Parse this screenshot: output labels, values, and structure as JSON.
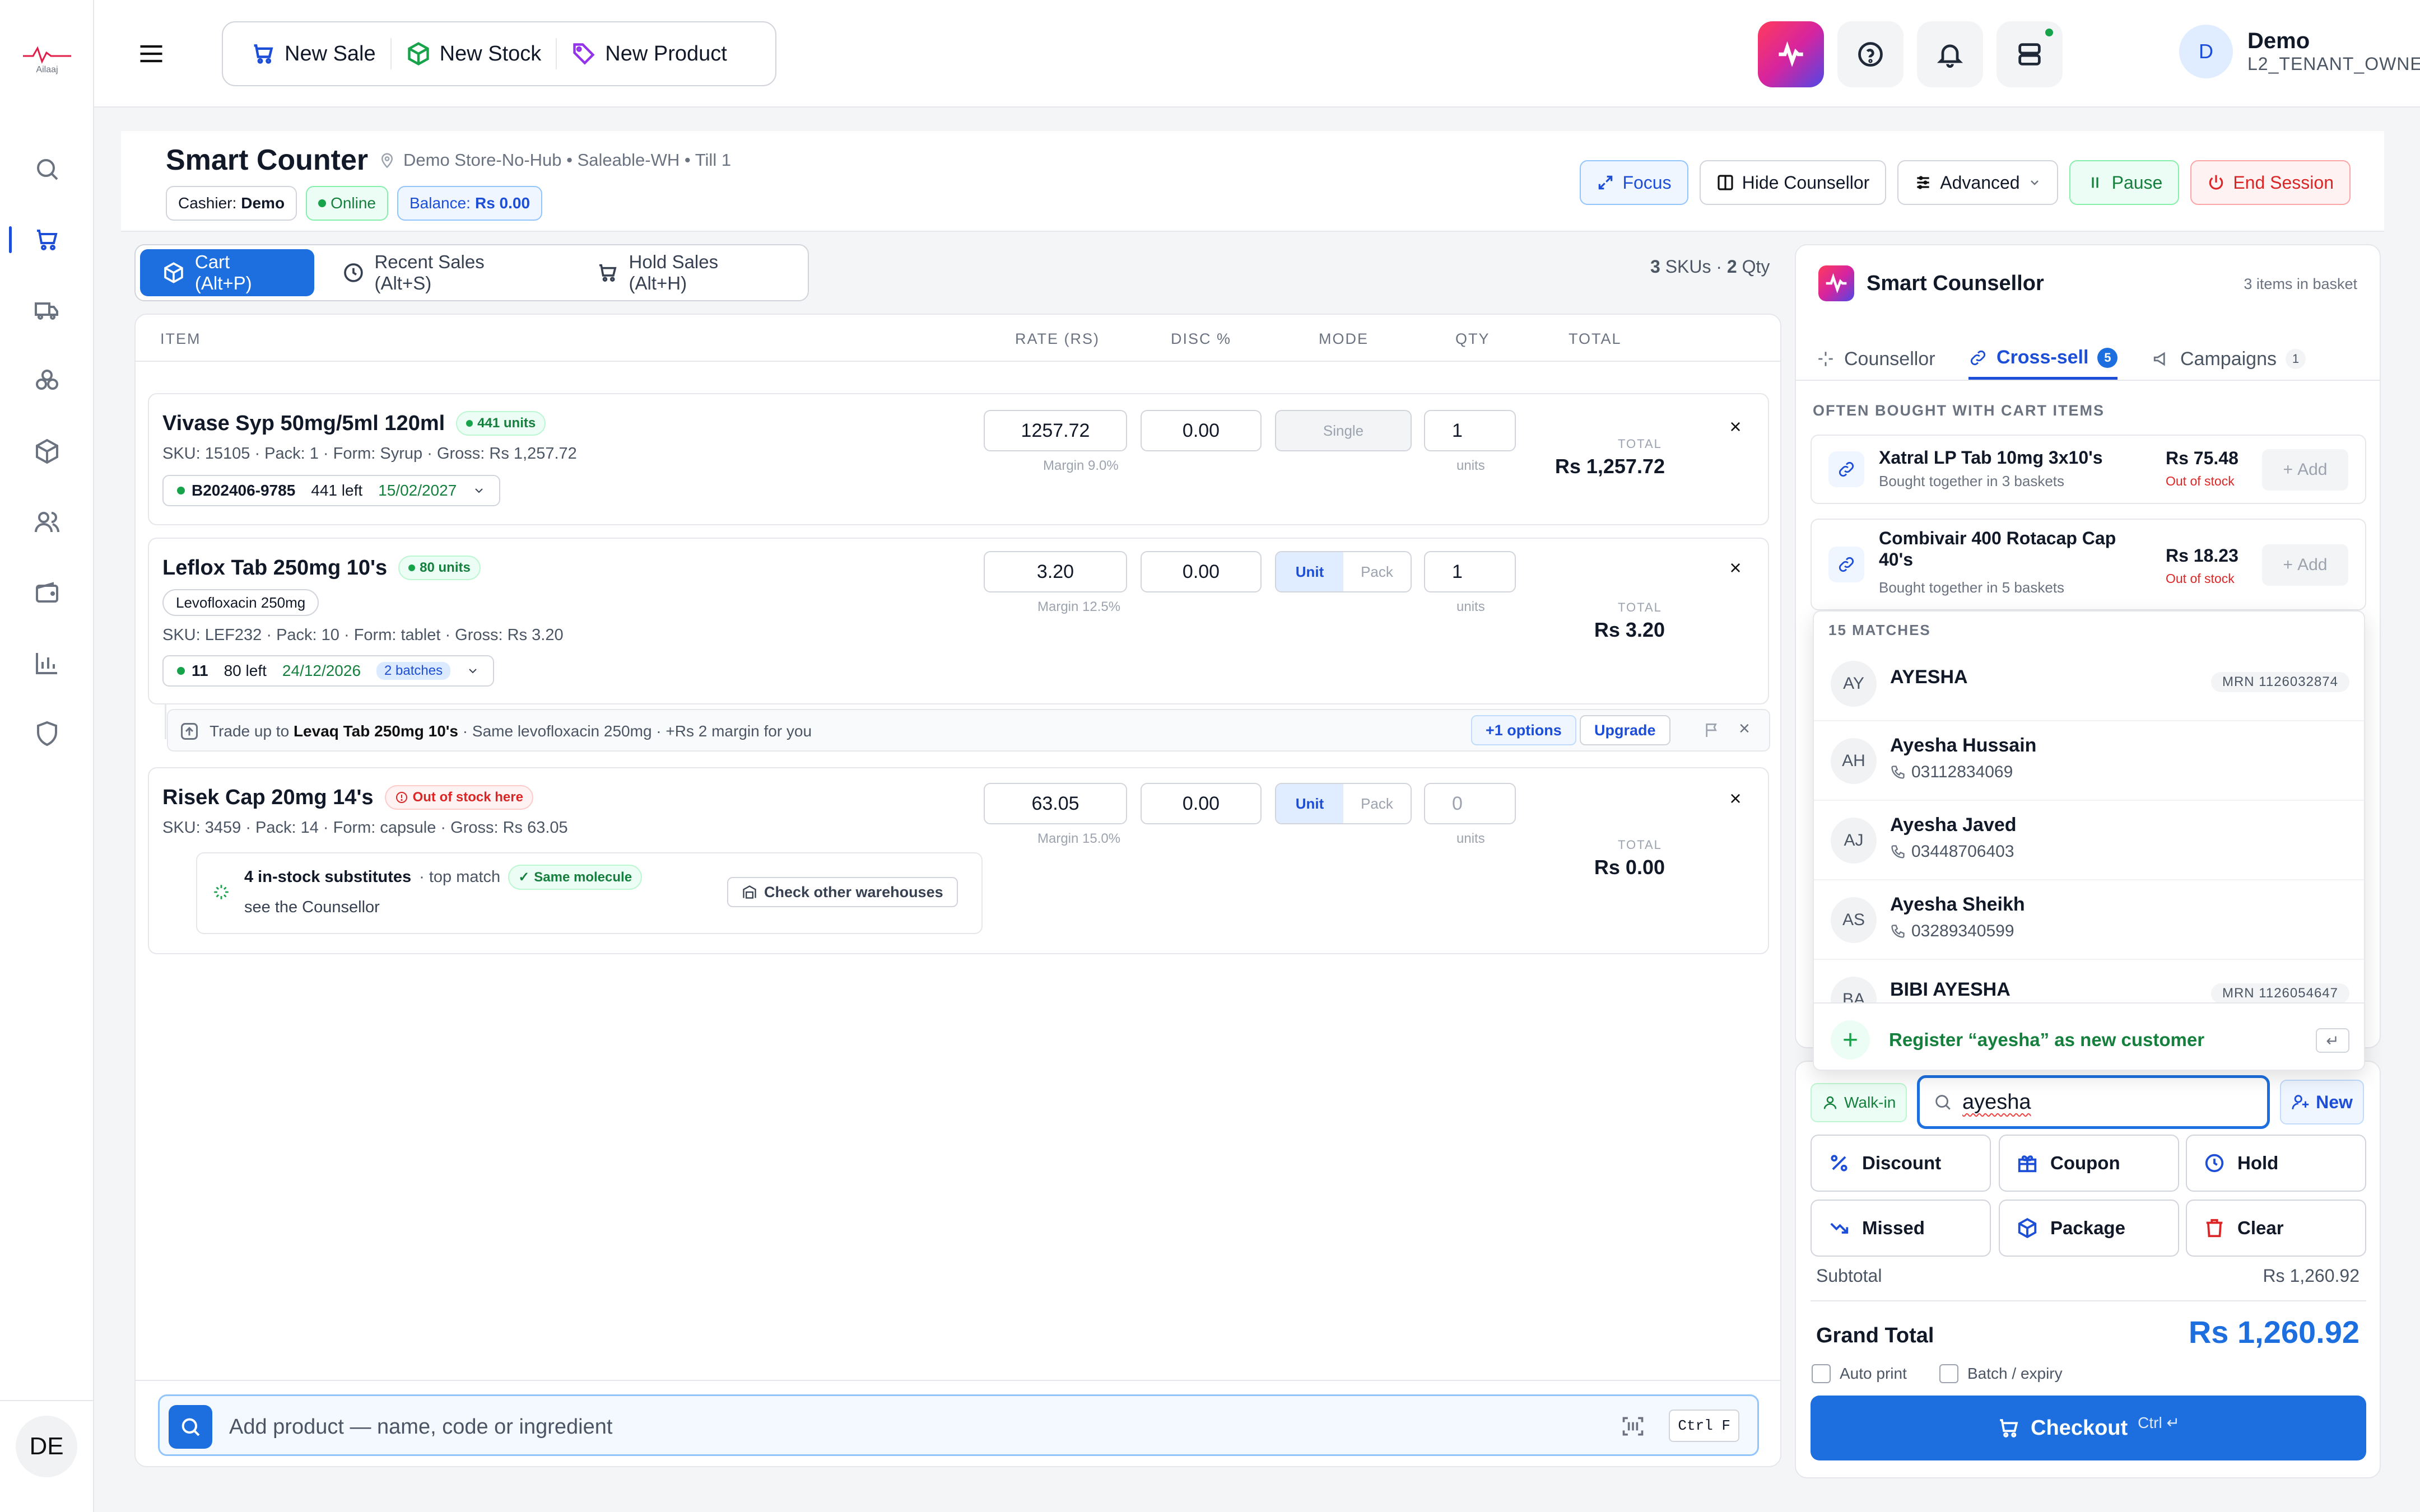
{
  "app": {
    "logo_text": "Ailaaj"
  },
  "topbar": {
    "new_sale": "New Sale",
    "new_stock": "New Stock",
    "new_product": "New Product",
    "user_name": "Demo",
    "user_role": "L2_TENANT_OWNER",
    "user_initial": "D"
  },
  "sidebar": {
    "bottom_avatar": "DE",
    "items": [
      "search-icon",
      "cart-icon",
      "truck-icon",
      "boxes-icon",
      "package-icon",
      "users-icon",
      "wallet-icon",
      "chart-icon",
      "shield-icon"
    ]
  },
  "header": {
    "title": "Smart Counter",
    "location": "Demo Store-No-Hub • Saleable-WH • Till 1",
    "cashier_label": "Cashier:",
    "cashier_value": "Demo",
    "online": "Online",
    "balance_label": "Balance:",
    "balance_value": "Rs 0.00",
    "focus": "Focus",
    "hide_counsellor": "Hide Counsellor",
    "advanced": "Advanced",
    "pause": "Pause",
    "end_session": "End Session"
  },
  "tabs": {
    "cart": "Cart (Alt+P)",
    "recent": "Recent Sales (Alt+S)",
    "hold": "Hold Sales (Alt+H)"
  },
  "summary": {
    "skus": "3",
    "skus_label": "SKUs ·",
    "qty": "2",
    "qty_label": "Qty"
  },
  "columns": {
    "item": "ITEM",
    "rate": "RATE (RS)",
    "disc": "DISC %",
    "mode": "MODE",
    "qty": "QTY",
    "total": "TOTAL"
  },
  "items": [
    {
      "name": "Vivase Syp 50mg/5ml 120ml",
      "stock_badge": "441 units",
      "meta": "SKU: 15105 · Pack: 1 · Form: Syrup · Gross: Rs 1,257.72",
      "batch": "B202406-9785",
      "left": "441 left",
      "expiry": "15/02/2027",
      "rate": "1257.72",
      "margin": "Margin 9.0%",
      "disc": "0.00",
      "mode_single": "Single",
      "qty": "1",
      "units": "units",
      "total_label": "TOTAL",
      "total": "Rs 1,257.72"
    },
    {
      "name": "Leflox Tab 250mg 10's",
      "stock_badge": "80 units",
      "generic": "Levofloxacin 250mg",
      "meta": "SKU: LEF232 · Pack: 10 · Form: tablet · Gross: Rs 3.20",
      "batch": "11",
      "left": "80 left",
      "expiry": "24/12/2026",
      "batches": "2 batches",
      "rate": "3.20",
      "margin": "Margin 12.5%",
      "disc": "0.00",
      "mode_unit": "Unit",
      "mode_pack": "Pack",
      "qty": "1",
      "units": "units",
      "total_label": "TOTAL",
      "total": "Rs 3.20",
      "upgrade_prefix": "Trade up to",
      "upgrade_product": "Levaq Tab 250mg 10's",
      "upgrade_suffix": "· Same levofloxacin 250mg · +Rs 2 margin for you",
      "options": "+1 options",
      "upgrade": "Upgrade"
    },
    {
      "name": "Risek Cap 20mg 14's",
      "stock_badge": "Out of stock here",
      "meta": "SKU: 3459 · Pack: 14 · Form: capsule · Gross: Rs 63.05",
      "rate": "63.05",
      "margin": "Margin 15.0%",
      "disc": "0.00",
      "mode_unit": "Unit",
      "mode_pack": "Pack",
      "qty_placeholder": "0",
      "units": "units",
      "total_label": "TOTAL",
      "total": "Rs 0.00",
      "subs_title": "4 in-stock substitutes",
      "subs_match": "· top match",
      "subs_badge": "Same molecule",
      "subs_hint": "see the Counsellor",
      "check_wh": "Check other warehouses"
    }
  ],
  "add_product": {
    "placeholder": "Add product — name, code or ingredient",
    "shortcut": "Ctrl F"
  },
  "counsellor": {
    "title": "Smart Counsellor",
    "basket_count": "3 items in basket",
    "tab_counsellor": "Counsellor",
    "tab_crosssell": "Cross-sell",
    "crosssell_count": "5",
    "tab_campaigns": "Campaigns",
    "campaigns_count": "1",
    "section": "OFTEN BOUGHT WITH CART ITEMS",
    "crosssell": [
      {
        "name": "Xatral LP Tab 10mg 3x10's",
        "sub": "Bought together in 3 baskets",
        "price": "Rs 75.48",
        "stock": "Out of stock",
        "add": "Add"
      },
      {
        "name": "Combivair 400 Rotacap Cap 40's",
        "sub": "Bought together in 5 baskets",
        "price": "Rs 18.23",
        "stock": "Out of stock",
        "add": "Add"
      }
    ]
  },
  "customer_search": {
    "matches": "15 MATCHES",
    "results": [
      {
        "initials": "AY",
        "name": "AYESHA",
        "mrn": "MRN 1126032874"
      },
      {
        "initials": "AH",
        "name": "Ayesha Hussain",
        "phone": "03112834069"
      },
      {
        "initials": "AJ",
        "name": "Ayesha Javed",
        "phone": "03448706403"
      },
      {
        "initials": "AS",
        "name": "Ayesha Sheikh",
        "phone": "03289340599"
      },
      {
        "initials": "BA",
        "name": "BIBI AYESHA",
        "mrn": "MRN 1126054647"
      }
    ],
    "register": "Register “ayesha” as new customer",
    "walkin": "Walk-in",
    "query": "ayesha",
    "new": "New"
  },
  "actions": {
    "discount": "Discount",
    "coupon": "Coupon",
    "hold": "Hold",
    "missed": "Missed",
    "package": "Package",
    "clear": "Clear"
  },
  "totals": {
    "subtotal_label": "Subtotal",
    "subtotal": "Rs 1,260.92",
    "grand_label": "Grand Total",
    "grand": "Rs 1,260.92",
    "auto_print": "Auto print",
    "batch_expiry": "Batch / expiry",
    "checkout": "Checkout",
    "checkout_hint": "Ctrl ↵"
  },
  "colors": {
    "primary": "#1d6fe0",
    "success": "#15803d",
    "danger": "#dc2626"
  }
}
